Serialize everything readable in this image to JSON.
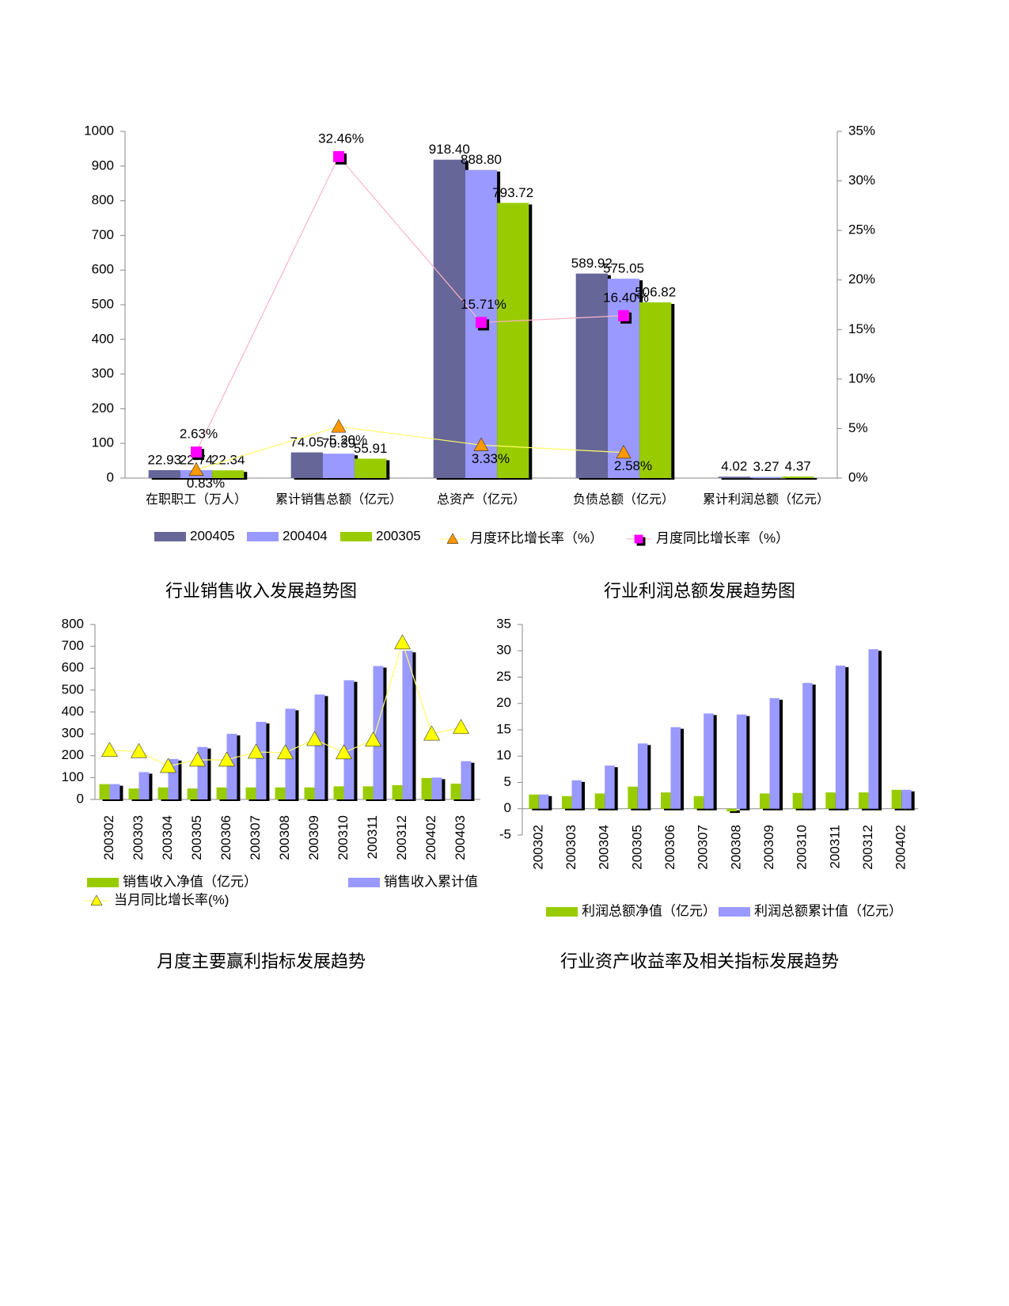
{
  "captions": [
    "行业销售收入发展趋势图",
    "行业利润总额发展趋势图",
    "月度主要赢利指标发展趋势",
    "行业资产收益率及相关指标发展趋势"
  ],
  "chart_data": [
    {
      "type": "bar",
      "categories": [
        "在职职工（万人）",
        "累计销售总额（亿元）",
        "总资产（亿元）",
        "负债总额（亿元）",
        "累计利润总额（亿元）"
      ],
      "series": [
        {
          "name": "200405",
          "color": "#666699",
          "values": [
            22.93,
            74.05,
            918.4,
            589.92,
            4.02
          ],
          "value_labels": [
            "22.93",
            "74.05",
            "918.40",
            "589.92",
            "4.02"
          ]
        },
        {
          "name": "200404",
          "color": "#9999ff",
          "values": [
            22.74,
            70.39,
            888.8,
            575.05,
            3.27
          ],
          "value_labels": [
            "22.74",
            "70.39",
            "888.80",
            "575.05",
            "3.27"
          ]
        },
        {
          "name": "200305",
          "color": "#99cc00",
          "values": [
            22.34,
            55.91,
            793.72,
            506.82,
            4.37
          ],
          "value_labels": [
            "22.34",
            "55.91",
            "793.72",
            "506.82",
            "4.37"
          ]
        },
        {
          "name": "月度环比增长率（%）",
          "type": "line",
          "axis": "y2",
          "marker": "triangle",
          "color": "#ff9900",
          "line_color": "#ffff66",
          "values": [
            0.83,
            5.2,
            3.33,
            2.58,
            null
          ],
          "value_labels": [
            "0.83%",
            "5.20%",
            "3.33%",
            "2.58%",
            null
          ]
        },
        {
          "name": "月度同比增长率（%）",
          "type": "line",
          "axis": "y2",
          "marker": "square",
          "color": "#ff00ff",
          "line_color": "#ffb3c6",
          "values": [
            2.63,
            32.46,
            15.71,
            16.4,
            null
          ],
          "value_labels": [
            "2.63%",
            "32.46%",
            "15.71%",
            "16.40%",
            null
          ]
        }
      ],
      "ylim": [
        0,
        1000
      ],
      "yticks": [
        0,
        100,
        200,
        300,
        400,
        500,
        600,
        700,
        800,
        900,
        1000
      ],
      "y2lim": [
        0,
        35
      ],
      "y2ticks": [
        {
          "value": 0,
          "label": "0%"
        },
        {
          "value": 5,
          "label": "5%"
        },
        {
          "value": 10,
          "label": "10%"
        },
        {
          "value": 15,
          "label": "15%"
        },
        {
          "value": 20,
          "label": "20%"
        },
        {
          "value": 25,
          "label": "25%"
        },
        {
          "value": 30,
          "label": "30%"
        },
        {
          "value": 35,
          "label": "35%"
        }
      ]
    },
    {
      "type": "bar",
      "categories": [
        "200302",
        "200303",
        "200304",
        "200305",
        "200306",
        "200307",
        "200308",
        "200309",
        "200310",
        "200311",
        "200312",
        "200402",
        "200403"
      ],
      "series": [
        {
          "name": "销售收入净值（亿元）",
          "color": "#99cc00",
          "values": [
            70,
            50,
            55,
            50,
            55,
            55,
            55,
            55,
            60,
            60,
            65,
            98,
            72
          ]
        },
        {
          "name": "销售收入累计值（亿元）",
          "color": "#9999ff",
          "values": [
            70,
            125,
            185,
            240,
            300,
            355,
            415,
            480,
            545,
            610,
            680,
            100,
            175
          ]
        },
        {
          "name": "当月同比增长率(%)",
          "type": "line",
          "marker": "triangle",
          "color": "#ffff00",
          "line_color": "#ffff66",
          "values": [
            225,
            220,
            152,
            181,
            181,
            217,
            214,
            275,
            214,
            272,
            717,
            300,
            330
          ]
        }
      ],
      "ylim": [
        0,
        800
      ],
      "yticks": [
        0,
        100,
        200,
        300,
        400,
        500,
        600,
        700,
        800
      ]
    },
    {
      "type": "bar",
      "categories": [
        "200302",
        "200303",
        "200304",
        "200305",
        "200306",
        "200307",
        "200308",
        "200309",
        "200310",
        "200311",
        "200312",
        "200402"
      ],
      "series": [
        {
          "name": "利润总额净值（亿元）",
          "color": "#99cc00",
          "values": [
            2.7,
            2.4,
            2.9,
            4.2,
            3.1,
            2.4,
            -0.5,
            2.9,
            3.0,
            3.1,
            3.1,
            3.6
          ]
        },
        {
          "name": "利润总额累计值（亿元）",
          "color": "#9999ff",
          "values": [
            2.7,
            5.4,
            8.2,
            12.4,
            15.5,
            18.1,
            17.9,
            21.0,
            23.9,
            27.2,
            30.3,
            3.6
          ]
        }
      ],
      "ylim": [
        -5,
        35
      ],
      "yticks": [
        -5,
        0,
        5,
        10,
        15,
        20,
        25,
        30,
        35
      ]
    }
  ]
}
